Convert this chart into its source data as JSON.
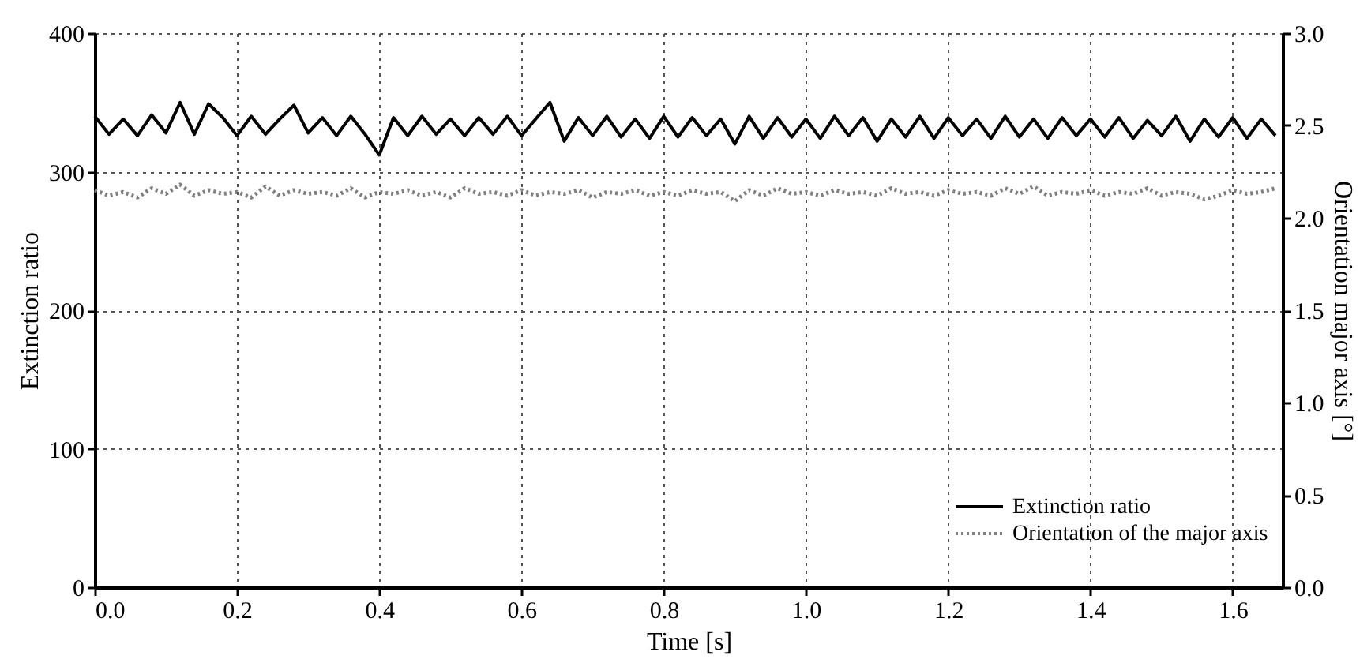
{
  "chart_data": {
    "type": "line",
    "xlabel": "Time [s]",
    "ylabel": "Extinction ratio",
    "y2label": "Orientation major axis [°]",
    "x": [
      0,
      0.02,
      0.04,
      0.06,
      0.08,
      0.1,
      0.12,
      0.14,
      0.16,
      0.18,
      0.2,
      0.22,
      0.24,
      0.26,
      0.28,
      0.3,
      0.32,
      0.34,
      0.36,
      0.38,
      0.4,
      0.42,
      0.44,
      0.46,
      0.48,
      0.5,
      0.52,
      0.54,
      0.56,
      0.58,
      0.6,
      0.62,
      0.64,
      0.66,
      0.68,
      0.7,
      0.72,
      0.74,
      0.76,
      0.78,
      0.8,
      0.82,
      0.84,
      0.86,
      0.88,
      0.9,
      0.92,
      0.94,
      0.96,
      0.98,
      1.0,
      1.02,
      1.04,
      1.06,
      1.08,
      1.1,
      1.12,
      1.14,
      1.16,
      1.18,
      1.2,
      1.22,
      1.24,
      1.26,
      1.28,
      1.3,
      1.32,
      1.34,
      1.36,
      1.38,
      1.4,
      1.42,
      1.44,
      1.46,
      1.48,
      1.5,
      1.52,
      1.54,
      1.56,
      1.58,
      1.6,
      1.62,
      1.64,
      1.66
    ],
    "series": [
      {
        "name": "Extinction ratio",
        "color": "#000000",
        "line_style": "solid",
        "values": [
          340,
          327,
          338,
          326,
          341,
          328,
          350,
          327,
          349,
          339,
          326,
          340,
          327,
          338,
          348,
          328,
          339,
          326,
          340,
          327,
          312,
          339,
          326,
          340,
          327,
          338,
          326,
          339,
          327,
          340,
          326,
          338,
          350,
          322,
          339,
          326,
          340,
          325,
          338,
          324,
          340,
          325,
          339,
          326,
          338,
          320,
          340,
          324,
          339,
          325,
          338,
          324,
          340,
          326,
          339,
          322,
          338,
          325,
          340,
          324,
          339,
          326,
          338,
          324,
          340,
          325,
          338,
          324,
          339,
          326,
          338,
          325,
          339,
          324,
          337,
          326,
          340,
          322,
          338,
          325,
          339,
          324,
          338,
          326
        ]
      },
      {
        "name": "Orientation of the major axis",
        "color": "#808080",
        "line_style": "dotted",
        "axis": "y2",
        "values": [
          2.15,
          2.12,
          2.14,
          2.11,
          2.16,
          2.13,
          2.18,
          2.12,
          2.15,
          2.13,
          2.14,
          2.11,
          2.17,
          2.12,
          2.15,
          2.13,
          2.14,
          2.12,
          2.16,
          2.11,
          2.14,
          2.13,
          2.15,
          2.12,
          2.14,
          2.11,
          2.16,
          2.13,
          2.14,
          2.12,
          2.15,
          2.12,
          2.14,
          2.13,
          2.15,
          2.11,
          2.14,
          2.13,
          2.15,
          2.12,
          2.14,
          2.12,
          2.15,
          2.13,
          2.14,
          2.09,
          2.15,
          2.12,
          2.16,
          2.13,
          2.14,
          2.12,
          2.15,
          2.13,
          2.14,
          2.12,
          2.16,
          2.13,
          2.14,
          2.12,
          2.15,
          2.13,
          2.14,
          2.12,
          2.16,
          2.13,
          2.17,
          2.12,
          2.14,
          2.13,
          2.15,
          2.12,
          2.14,
          2.13,
          2.16,
          2.12,
          2.14,
          2.13,
          2.1,
          2.12,
          2.15,
          2.13,
          2.14,
          2.16
        ]
      }
    ],
    "xlim": [
      0,
      1.67
    ],
    "xticks": [
      {
        "value": 0,
        "label": "0.0"
      },
      {
        "value": 0.2,
        "label": "0.2"
      },
      {
        "value": 0.4,
        "label": "0.4"
      },
      {
        "value": 0.6,
        "label": "0.6"
      },
      {
        "value": 0.8,
        "label": "0.8"
      },
      {
        "value": 1.0,
        "label": "1.0"
      },
      {
        "value": 1.2,
        "label": "1.2"
      },
      {
        "value": 1.4,
        "label": "1.4"
      },
      {
        "value": 1.6,
        "label": "1.6"
      }
    ],
    "ylim": [
      0,
      400
    ],
    "yticks": [
      0,
      100,
      200,
      300,
      400
    ],
    "y2lim": [
      0,
      3
    ],
    "y2ticks": [
      {
        "value": 0,
        "label": "0.0"
      },
      {
        "value": 0.5,
        "label": "0.5"
      },
      {
        "value": 1.0,
        "label": "1.0"
      },
      {
        "value": 1.5,
        "label": "1.5"
      },
      {
        "value": 2.0,
        "label": "2.0"
      },
      {
        "value": 2.5,
        "label": "2.5"
      },
      {
        "value": 3.0,
        "label": "3.0"
      }
    ],
    "grid": true,
    "legend": "bottom right",
    "marker": "none"
  }
}
